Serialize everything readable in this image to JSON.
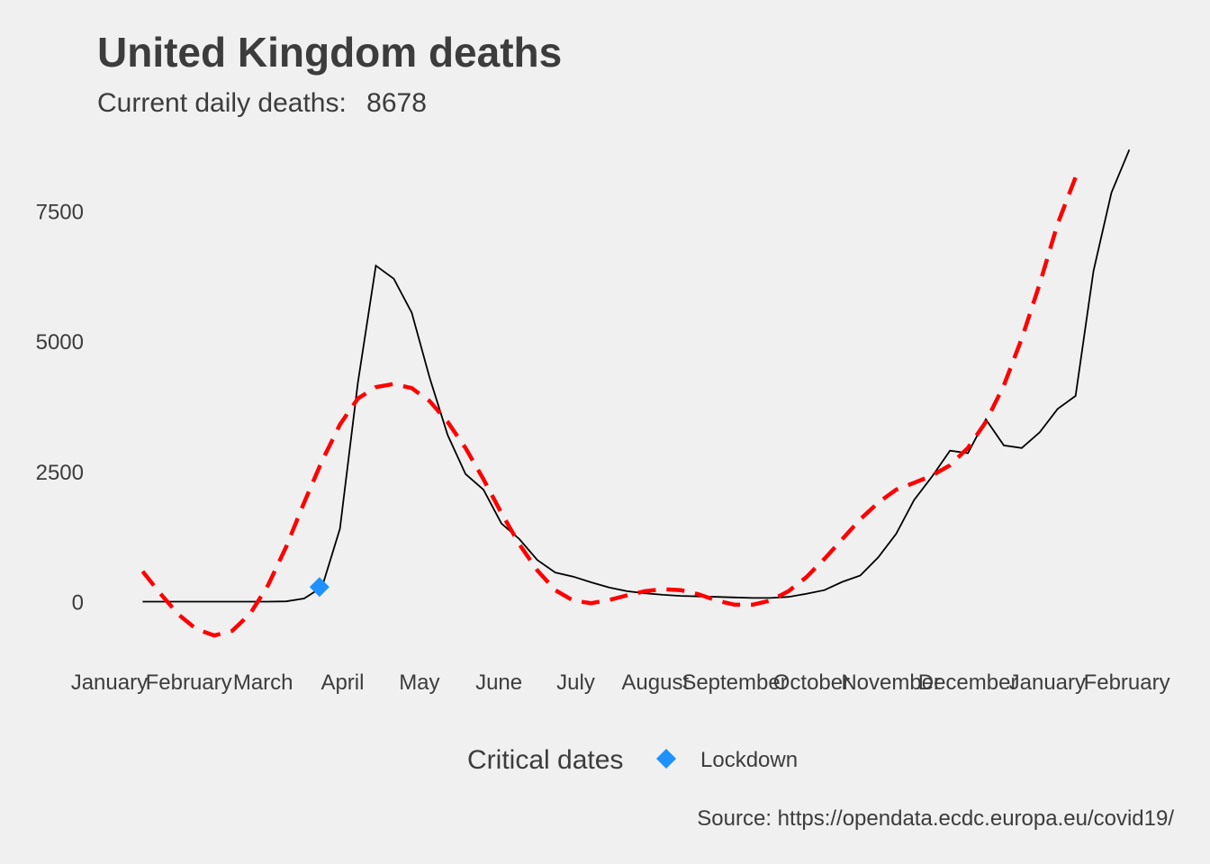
{
  "chart_data": {
    "type": "line",
    "title": "United Kingdom deaths",
    "subtitle": {
      "label": "Current daily deaths:",
      "value": "8678"
    },
    "xlabel": "",
    "ylabel": "",
    "x_tick_labels": [
      "January",
      "February",
      "March",
      "April",
      "May",
      "June",
      "July",
      "August",
      "September",
      "October",
      "November",
      "December",
      "January",
      "February"
    ],
    "x_ticks": [
      "2020-01-01",
      "2020-02-01",
      "2020-03-01",
      "2020-04-01",
      "2020-05-01",
      "2020-06-01",
      "2020-07-01",
      "2020-08-01",
      "2020-09-01",
      "2020-10-01",
      "2020-11-01",
      "2020-12-01",
      "2021-01-01",
      "2021-02-01"
    ],
    "y_ticks": [
      0,
      2500,
      5000,
      7500
    ],
    "y_tick_labels": [
      "0",
      "2500",
      "5000",
      "7500"
    ],
    "xlim": [
      "2019-12-28",
      "2021-02-18"
    ],
    "ylim": [
      -1150,
      8960
    ],
    "grid": false,
    "series": [
      {
        "style": "solid",
        "color": "#000000",
        "points": [
          [
            "2020-01-14",
            0
          ],
          [
            "2020-01-21",
            0
          ],
          [
            "2020-01-28",
            0
          ],
          [
            "2020-02-04",
            0
          ],
          [
            "2020-02-11",
            0
          ],
          [
            "2020-02-18",
            0
          ],
          [
            "2020-02-25",
            0
          ],
          [
            "2020-03-03",
            0
          ],
          [
            "2020-03-10",
            5
          ],
          [
            "2020-03-17",
            60
          ],
          [
            "2020-03-24",
            280
          ],
          [
            "2020-03-31",
            1400
          ],
          [
            "2020-04-07",
            4200
          ],
          [
            "2020-04-14",
            6450
          ],
          [
            "2020-04-21",
            6200
          ],
          [
            "2020-04-28",
            5550
          ],
          [
            "2020-05-05",
            4300
          ],
          [
            "2020-05-12",
            3200
          ],
          [
            "2020-05-19",
            2450
          ],
          [
            "2020-05-26",
            2150
          ],
          [
            "2020-06-02",
            1500
          ],
          [
            "2020-06-09",
            1200
          ],
          [
            "2020-06-16",
            800
          ],
          [
            "2020-06-23",
            560
          ],
          [
            "2020-06-30",
            480
          ],
          [
            "2020-07-07",
            370
          ],
          [
            "2020-07-14",
            270
          ],
          [
            "2020-07-21",
            200
          ],
          [
            "2020-07-28",
            160
          ],
          [
            "2020-08-04",
            130
          ],
          [
            "2020-08-11",
            110
          ],
          [
            "2020-08-18",
            100
          ],
          [
            "2020-08-25",
            90
          ],
          [
            "2020-09-01",
            80
          ],
          [
            "2020-09-08",
            70
          ],
          [
            "2020-09-15",
            70
          ],
          [
            "2020-09-22",
            90
          ],
          [
            "2020-09-29",
            150
          ],
          [
            "2020-10-06",
            220
          ],
          [
            "2020-10-13",
            380
          ],
          [
            "2020-10-20",
            500
          ],
          [
            "2020-10-27",
            850
          ],
          [
            "2020-11-03",
            1300
          ],
          [
            "2020-11-10",
            1950
          ],
          [
            "2020-11-17",
            2400
          ],
          [
            "2020-11-24",
            2900
          ],
          [
            "2020-12-01",
            2850
          ],
          [
            "2020-12-08",
            3500
          ],
          [
            "2020-12-15",
            3000
          ],
          [
            "2020-12-22",
            2950
          ],
          [
            "2020-12-29",
            3250
          ],
          [
            "2021-01-05",
            3700
          ],
          [
            "2021-01-12",
            3950
          ],
          [
            "2021-01-19",
            6350
          ],
          [
            "2021-01-26",
            7850
          ],
          [
            "2021-02-02",
            8678
          ]
        ]
      },
      {
        "style": "dashed",
        "color": "#ff0000",
        "points": [
          [
            "2020-01-14",
            580
          ],
          [
            "2020-01-21",
            150
          ],
          [
            "2020-01-28",
            -250
          ],
          [
            "2020-02-04",
            -530
          ],
          [
            "2020-02-11",
            -650
          ],
          [
            "2020-02-18",
            -560
          ],
          [
            "2020-02-25",
            -230
          ],
          [
            "2020-03-03",
            320
          ],
          [
            "2020-03-10",
            1050
          ],
          [
            "2020-03-17",
            1900
          ],
          [
            "2020-03-24",
            2700
          ],
          [
            "2020-03-31",
            3400
          ],
          [
            "2020-04-07",
            3900
          ],
          [
            "2020-04-14",
            4120
          ],
          [
            "2020-04-21",
            4180
          ],
          [
            "2020-04-28",
            4100
          ],
          [
            "2020-05-05",
            3850
          ],
          [
            "2020-05-12",
            3450
          ],
          [
            "2020-05-19",
            2950
          ],
          [
            "2020-05-26",
            2350
          ],
          [
            "2020-06-02",
            1700
          ],
          [
            "2020-06-09",
            1100
          ],
          [
            "2020-06-16",
            600
          ],
          [
            "2020-06-23",
            220
          ],
          [
            "2020-06-30",
            20
          ],
          [
            "2020-07-07",
            -30
          ],
          [
            "2020-07-14",
            30
          ],
          [
            "2020-07-21",
            120
          ],
          [
            "2020-07-28",
            200
          ],
          [
            "2020-08-04",
            240
          ],
          [
            "2020-08-11",
            220
          ],
          [
            "2020-08-18",
            140
          ],
          [
            "2020-08-25",
            20
          ],
          [
            "2020-09-01",
            -60
          ],
          [
            "2020-09-08",
            -60
          ],
          [
            "2020-09-15",
            20
          ],
          [
            "2020-09-22",
            200
          ],
          [
            "2020-09-29",
            470
          ],
          [
            "2020-10-06",
            820
          ],
          [
            "2020-10-13",
            1200
          ],
          [
            "2020-10-20",
            1580
          ],
          [
            "2020-10-27",
            1900
          ],
          [
            "2020-11-03",
            2150
          ],
          [
            "2020-11-10",
            2280
          ],
          [
            "2020-11-17",
            2420
          ],
          [
            "2020-11-24",
            2620
          ],
          [
            "2020-12-01",
            2950
          ],
          [
            "2020-12-08",
            3450
          ],
          [
            "2020-12-15",
            4150
          ],
          [
            "2020-12-22",
            5050
          ],
          [
            "2020-12-29",
            6100
          ],
          [
            "2021-01-05",
            7250
          ],
          [
            "2021-01-12",
            8150
          ]
        ]
      }
    ],
    "markers": [
      {
        "label": "Lockdown",
        "x": "2020-03-23",
        "y": 280,
        "shape": "diamond",
        "color": "#1e90ff"
      }
    ],
    "legend": {
      "title": "Critical dates",
      "position": "bottom",
      "items": [
        {
          "label": "Lockdown",
          "shape": "diamond",
          "color": "#1e90ff"
        }
      ]
    },
    "caption": "Source: https://opendata.ecdc.europa.eu/covid19/"
  }
}
